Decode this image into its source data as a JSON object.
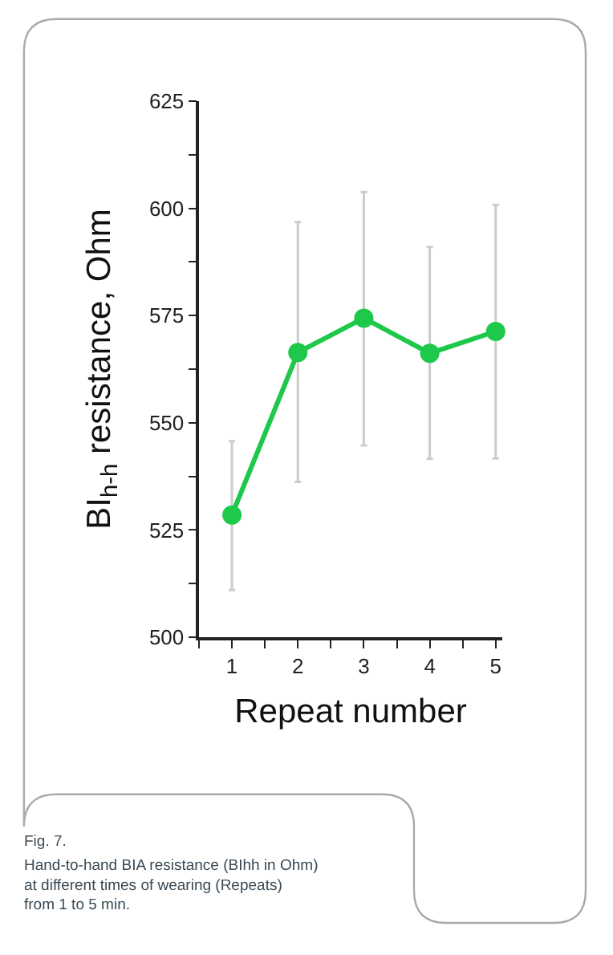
{
  "chart_data": {
    "type": "line",
    "xlabel": "Repeat number",
    "ylabel": "BI$_{h-h}$ resistance, Ohm",
    "x": [
      1,
      2,
      3,
      4,
      5
    ],
    "series": [
      {
        "color": "#1ec84a",
        "values": [
          528.5,
          566.4,
          574.4,
          566.2,
          571.3
        ],
        "errors": [
          [
            511,
            545.7
          ],
          [
            536.2,
            596.8
          ],
          [
            544.7,
            603.8
          ],
          [
            541.6,
            591
          ],
          [
            541.7,
            600.8
          ]
        ]
      }
    ],
    "marker": "circle",
    "line_style": "solid",
    "legend": false,
    "xlim": [
      0.5,
      5.1
    ],
    "xticks": [
      {
        "value": 0.5,
        "label": null
      },
      1,
      {
        "value": 1.5,
        "label": null
      },
      2,
      {
        "value": 2.5,
        "label": null
      },
      3,
      {
        "value": 3.5,
        "label": null
      },
      4,
      {
        "value": 4.5,
        "label": null
      },
      5
    ],
    "ylim": [
      500,
      625
    ],
    "yticks": [
      500,
      {
        "value": 512.5,
        "label": null
      },
      525,
      {
        "value": 537.5,
        "label": null
      },
      550,
      {
        "value": 562.5,
        "label": null
      },
      575,
      {
        "value": 587.5,
        "label": null
      },
      600,
      {
        "value": 612.5,
        "label": null
      },
      625
    ],
    "annotations": [
      "Fig. 7.",
      "Hand-to-hand BIA resistance (BIhh in Ohm)\nat different times of wearing (Repeats)\nfrom 1 to 5 min."
    ]
  }
}
